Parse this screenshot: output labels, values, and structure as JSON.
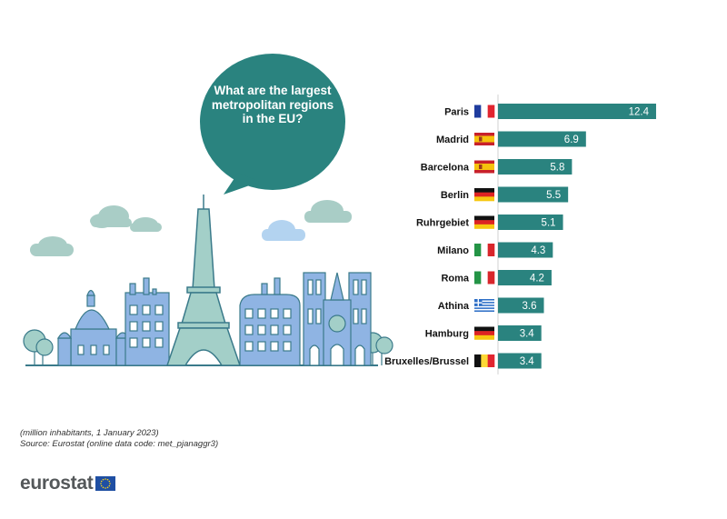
{
  "bubble": {
    "question": "What are the largest metropolitan regions in the EU?"
  },
  "chart_data": {
    "type": "bar",
    "orientation": "horizontal",
    "categories": [
      "Paris",
      "Madrid",
      "Barcelona",
      "Berlin",
      "Ruhrgebiet",
      "Milano",
      "Roma",
      "Athina",
      "Hamburg",
      "Bruxelles/Brussel"
    ],
    "flags": [
      "france",
      "spain",
      "spain",
      "germany",
      "germany",
      "italy",
      "italy",
      "greece",
      "germany",
      "belgium"
    ],
    "values": [
      12.4,
      6.9,
      5.8,
      5.5,
      5.1,
      4.3,
      4.2,
      3.6,
      3.4,
      3.4
    ],
    "value_labels": [
      "12.4",
      "6.9",
      "5.8",
      "5.5",
      "5.1",
      "4.3",
      "4.2",
      "3.6",
      "3.4",
      "3.4"
    ],
    "bar_color": "#2a837f",
    "grid": false,
    "legend": "none"
  },
  "notes": {
    "unit": "(million inhabitants, 1 January 2023)",
    "source": "Source: Eurostat (online data code: met_pjanaggr3)"
  },
  "logo": {
    "text": "eurostat",
    "icon": "eu-flag-icon"
  },
  "colors": {
    "teal": "#2a837f",
    "cloud": "#a9cdc6",
    "cloud_blue": "#b3d3f0",
    "building": "#8fb4e3",
    "outline": "#3a7a8a",
    "tree": "#a3cfc8"
  }
}
